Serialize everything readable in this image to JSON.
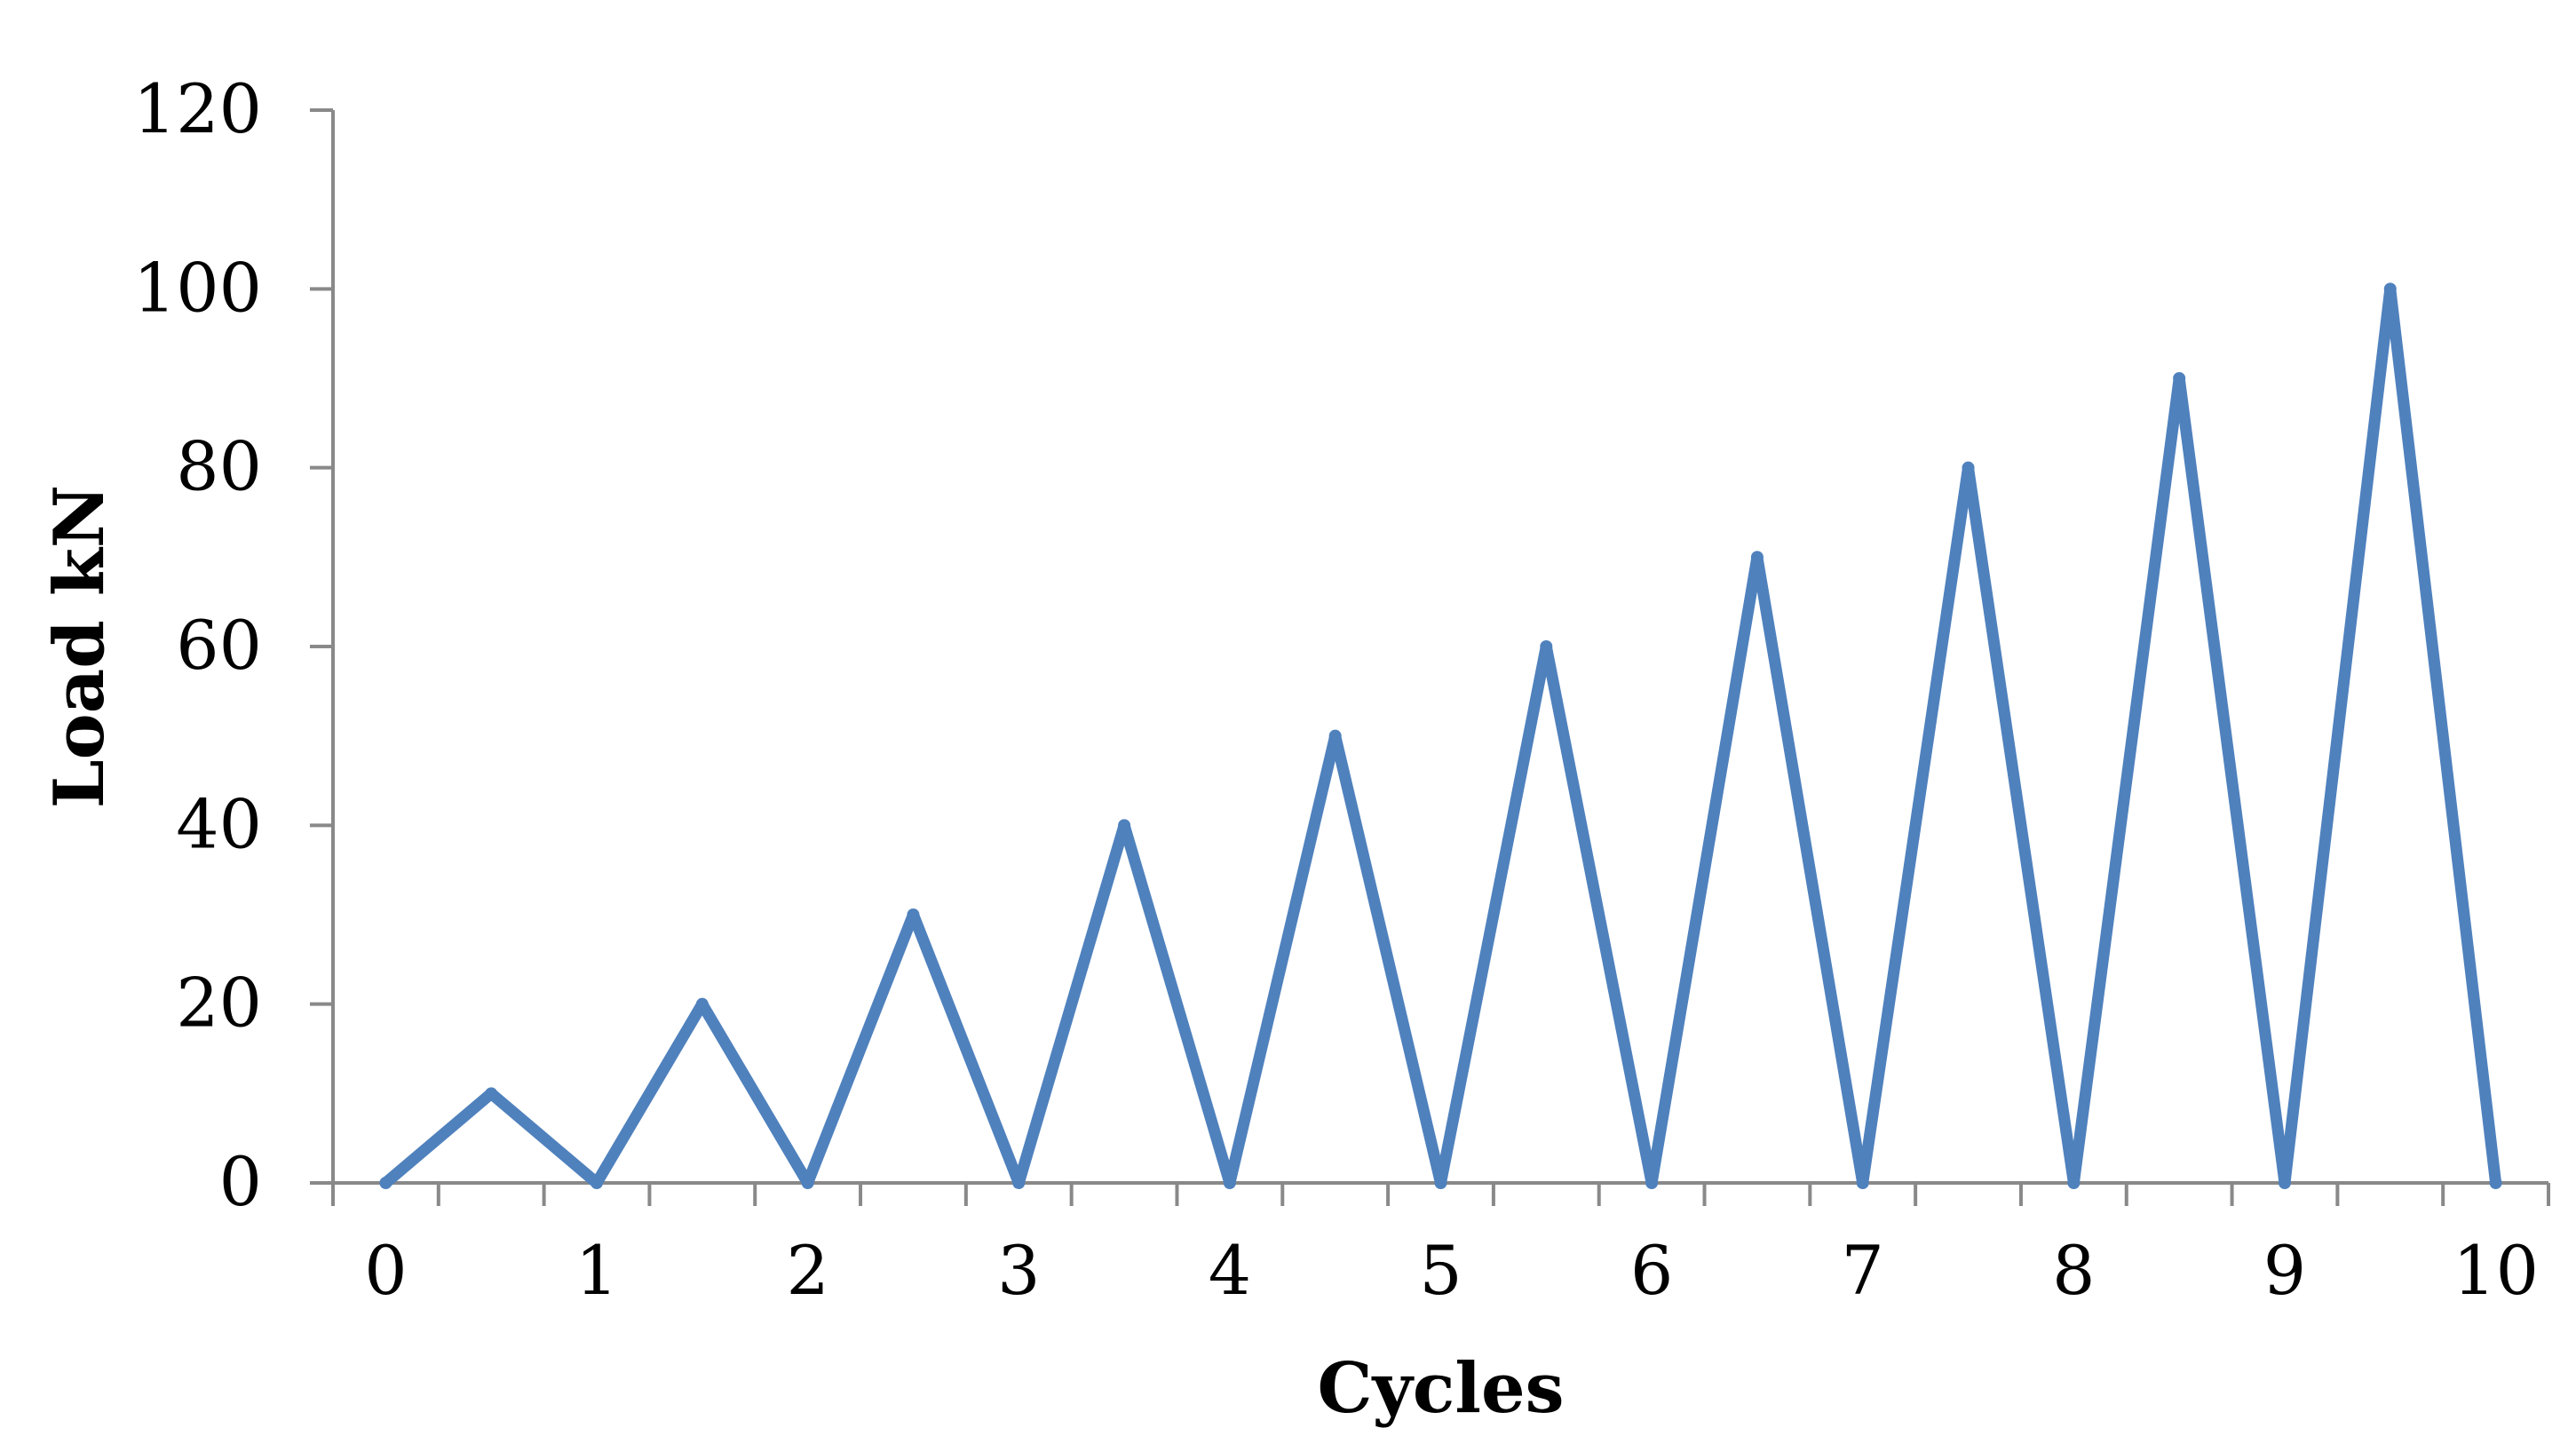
{
  "chart_data": {
    "type": "line",
    "title": "",
    "xlabel": "Cycles",
    "ylabel": "Load kN",
    "xlim": [
      -0.25,
      10.25
    ],
    "ylim": [
      0,
      120
    ],
    "xticks": [
      "0",
      "1",
      "2",
      "3",
      "4",
      "5",
      "6",
      "7",
      "8",
      "9",
      "10"
    ],
    "yticks": [
      "0",
      "20",
      "40",
      "60",
      "80",
      "100",
      "120"
    ],
    "grid": false,
    "legend": "none",
    "series": [
      {
        "color": "#4f81bd",
        "x": [
          0,
          0.5,
          1,
          1.5,
          2,
          2.5,
          3,
          3.5,
          4,
          4.5,
          5,
          5.5,
          6,
          6.5,
          7,
          7.5,
          8,
          8.5,
          9,
          9.5,
          10
        ],
        "y": [
          0,
          10,
          0,
          20,
          0,
          30,
          0,
          40,
          0,
          50,
          0,
          60,
          0,
          70,
          0,
          80,
          0,
          90,
          0,
          100,
          0
        ]
      }
    ]
  }
}
